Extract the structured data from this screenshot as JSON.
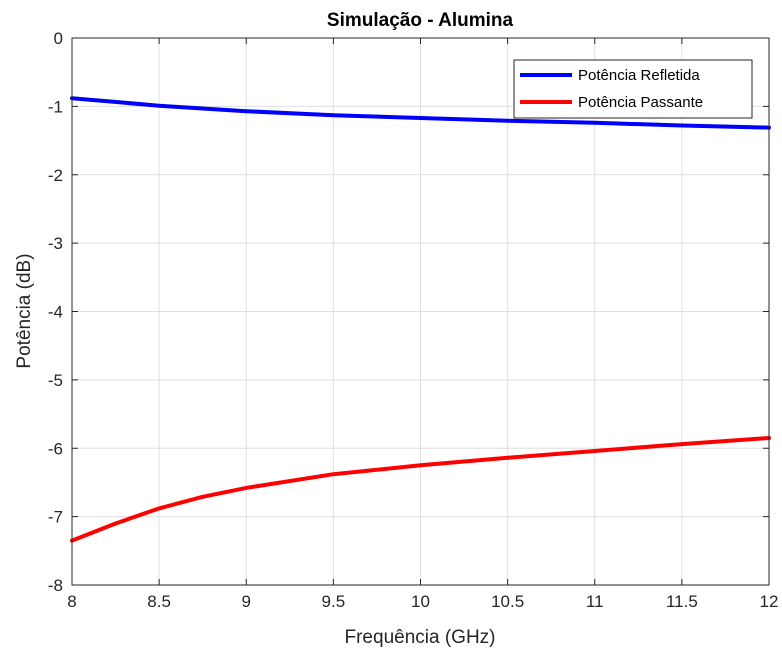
{
  "chart_data": {
    "type": "line",
    "title": "Simulação - Alumina",
    "xlabel": "Frequência (GHz)",
    "ylabel": "Potência (dB)",
    "xlim": [
      8,
      12
    ],
    "ylim": [
      -8,
      0
    ],
    "xticks": [
      8,
      8.5,
      9,
      9.5,
      10,
      10.5,
      11,
      11.5,
      12
    ],
    "yticks": [
      0,
      -1,
      -2,
      -3,
      -4,
      -5,
      -6,
      -7,
      -8
    ],
    "xtick_labels": [
      "8",
      "8.5",
      "9",
      "9.5",
      "10",
      "10.5",
      "11",
      "11.5",
      "12"
    ],
    "ytick_labels": [
      "0",
      "-1",
      "-2",
      "-3",
      "-4",
      "-5",
      "-6",
      "-7",
      "-8"
    ],
    "grid": true,
    "legend_position": "top-right",
    "series": [
      {
        "name": "Potência Refletida",
        "color": "#0000ff",
        "x": [
          8,
          8.5,
          9,
          9.5,
          10,
          10.5,
          11,
          11.5,
          12
        ],
        "y": [
          -0.88,
          -0.99,
          -1.07,
          -1.13,
          -1.17,
          -1.21,
          -1.24,
          -1.28,
          -1.31
        ]
      },
      {
        "name": "Potência Passante",
        "color": "#ff0000",
        "x": [
          8,
          8.25,
          8.5,
          8.75,
          9,
          9.5,
          10,
          10.5,
          11,
          11.5,
          12
        ],
        "y": [
          -7.35,
          -7.1,
          -6.88,
          -6.71,
          -6.58,
          -6.38,
          -6.25,
          -6.14,
          -6.04,
          -5.94,
          -5.85
        ]
      }
    ]
  }
}
